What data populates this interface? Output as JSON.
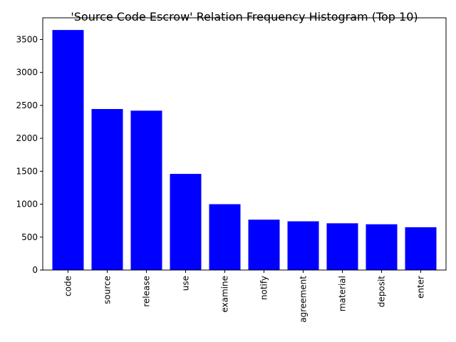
{
  "chart_data": {
    "type": "bar",
    "title": "'Source Code Escrow' Relation Frequency Histogram (Top 10)",
    "xlabel": "",
    "ylabel": "",
    "categories": [
      "code",
      "source",
      "release",
      "use",
      "examine",
      "notify",
      "agreement",
      "material",
      "deposit",
      "enter"
    ],
    "values": [
      3645,
      2445,
      2420,
      1460,
      1000,
      765,
      740,
      710,
      695,
      650
    ],
    "ylim": [
      0,
      3830
    ],
    "yticks": [
      0,
      500,
      1000,
      1500,
      2000,
      2500,
      3000,
      3500
    ],
    "bar_color": "#0000ff",
    "grid": false
  }
}
